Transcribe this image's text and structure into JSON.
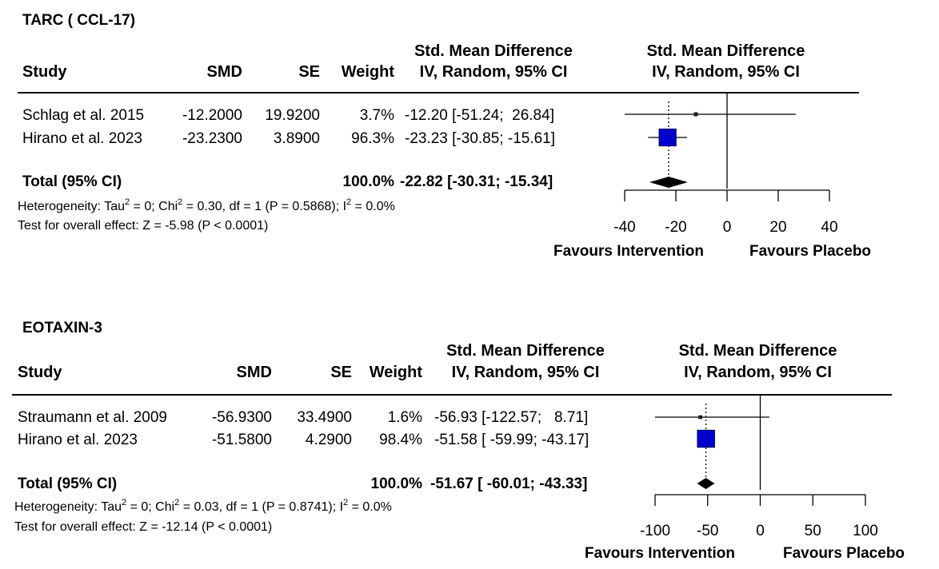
{
  "chart_data": [
    {
      "type": "forest",
      "title": "TARC ( CCL-17)",
      "columns": {
        "study": "Study",
        "smd": "SMD",
        "se": "SE",
        "weight": "Weight",
        "ci_head_1": "Std. Mean Difference",
        "ci_head_2": "IV, Random, 95% CI",
        "plot_head_1": "Std. Mean Difference",
        "plot_head_2": "IV, Random, 95% CI"
      },
      "studies": [
        {
          "name": "Schlag et al. 2015",
          "smd": "-12.2000",
          "se": "19.9200",
          "weight": "3.7%",
          "ci": "-12.20 [-51.24;  26.84]",
          "estimate": -12.2,
          "lower": -51.24,
          "upper": 26.84,
          "weight_pct": 3.7
        },
        {
          "name": "Hirano et al. 2023",
          "smd": "-23.2300",
          "se": "3.8900",
          "weight": "96.3%",
          "ci": "-23.23 [-30.85; -15.61]",
          "estimate": -23.23,
          "lower": -30.85,
          "upper": -15.61,
          "weight_pct": 96.3
        }
      ],
      "total": {
        "label": "Total (95% CI)",
        "weight": "100.0%",
        "ci": "-22.82 [-30.31; -15.34]",
        "estimate": -22.82,
        "lower": -30.31,
        "upper": -15.34
      },
      "heterogeneity": {
        "prefix": "Heterogeneity: Tau",
        "tau_mid": " = 0; Chi",
        "chi_mid": " = 0.30, df = 1 (P = 0.5868); I",
        "i_end": " = 0.0%",
        "sup": "2"
      },
      "overall_effect": "Test for overall effect: Z = -5.98 (P < 0.0001)",
      "x_ticks": [
        -40,
        -20,
        0,
        20,
        40
      ],
      "x_tick_labels": [
        "-40",
        "-20",
        "0",
        "20",
        "40"
      ],
      "xlim": [
        -40,
        40
      ],
      "favours_left": "Favours Intervention",
      "favours_right": "Favours Placebo",
      "colors": {
        "square": "#0000cc",
        "diamond": "#000000"
      }
    },
    {
      "type": "forest",
      "title": "EOTAXIN-3",
      "columns": {
        "study": "Study",
        "smd": "SMD",
        "se": "SE",
        "weight": "Weight",
        "ci_head_1": "Std. Mean Difference",
        "ci_head_2": "IV, Random, 95% CI",
        "plot_head_1": "Std. Mean Difference",
        "plot_head_2": "IV, Random, 95% CI"
      },
      "studies": [
        {
          "name": "Straumann et al. 2009",
          "smd": "-56.9300",
          "se": "33.4900",
          "weight": "1.6%",
          "ci": "-56.93 [-122.57;   8.71]",
          "estimate": -56.93,
          "lower": -122.57,
          "upper": 8.71,
          "weight_pct": 1.6
        },
        {
          "name": "Hirano et al. 2023",
          "smd": "-51.5800",
          "se": "4.2900",
          "weight": "98.4%",
          "ci": "-51.58 [ -59.99; -43.17]",
          "estimate": -51.58,
          "lower": -59.99,
          "upper": -43.17,
          "weight_pct": 98.4
        }
      ],
      "total": {
        "label": "Total (95% CI)",
        "weight": "100.0%",
        "ci": "-51.67 [ -60.01; -43.33]",
        "estimate": -51.67,
        "lower": -60.01,
        "upper": -43.33
      },
      "heterogeneity": {
        "prefix": "Heterogeneity: Tau",
        "tau_mid": " = 0; Chi",
        "chi_mid": " = 0.03, df = 1 (P = 0.8741); I",
        "i_end": " = 0.0%",
        "sup": "2"
      },
      "overall_effect": "Test for overall effect: Z = -12.14 (P < 0.0001)",
      "x_ticks": [
        -100,
        -50,
        0,
        50,
        100
      ],
      "x_tick_labels": [
        "-100",
        "-50",
        "0",
        "50",
        "100"
      ],
      "xlim": [
        -100,
        100
      ],
      "favours_left": "Favours Intervention",
      "favours_right": "Favours Placebo",
      "colors": {
        "square": "#0000cc",
        "diamond": "#000000"
      }
    }
  ]
}
